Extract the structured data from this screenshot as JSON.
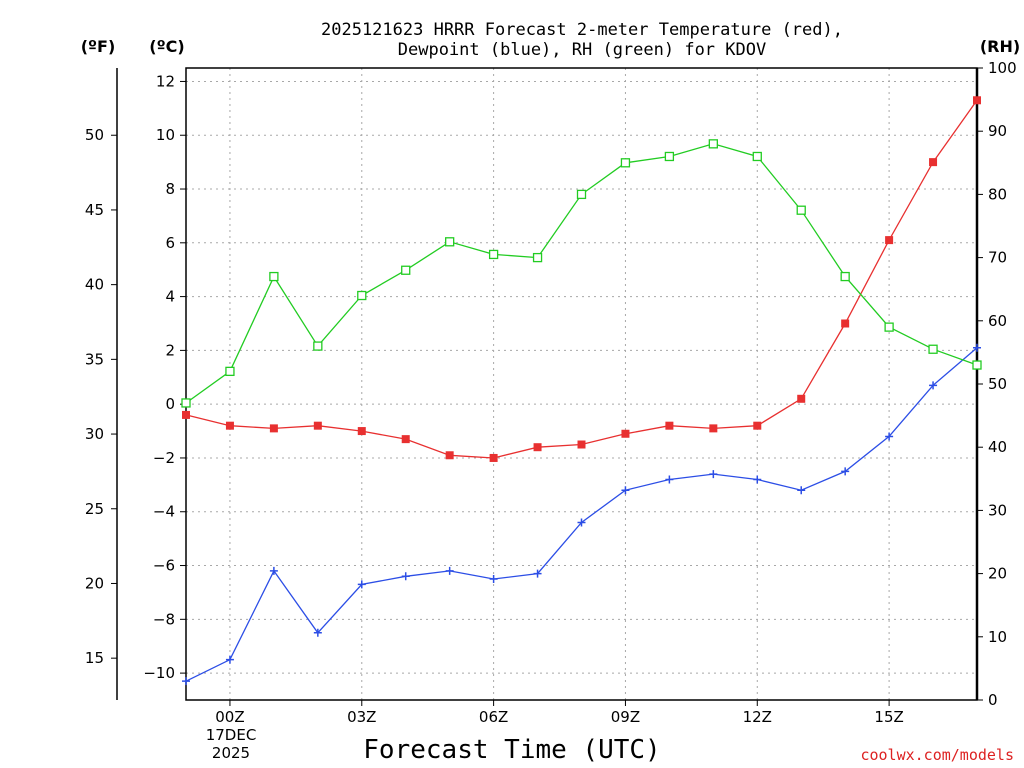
{
  "chart_data": {
    "type": "line",
    "title_line1": "2025121623 HRRR Forecast 2-meter Temperature (red),",
    "title_line2": "Dewpoint (blue), RH (green) for KDOV",
    "xlabel": "Forecast Time (UTC)",
    "credit": "coolwx.com/models",
    "date_label_day": "17DEC",
    "date_label_year": "2025",
    "units": {
      "fahrenheit": "(ºF)",
      "celsius": "(ºC)",
      "rh": "(RH)"
    },
    "x_hours": [
      -1,
      0,
      1,
      2,
      3,
      4,
      5,
      6,
      7,
      8,
      9,
      10,
      11,
      12,
      13,
      14,
      15,
      16,
      17
    ],
    "xlim": [
      -1,
      17
    ],
    "x_ticks": [
      {
        "hour": 0,
        "label": "00Z"
      },
      {
        "hour": 3,
        "label": "03Z"
      },
      {
        "hour": 6,
        "label": "06Z"
      },
      {
        "hour": 9,
        "label": "09Z"
      },
      {
        "hour": 12,
        "label": "12Z"
      },
      {
        "hour": 15,
        "label": "15Z"
      }
    ],
    "celsius_axis": {
      "min": -11,
      "max": 12.5,
      "ticks": [
        12,
        10,
        8,
        6,
        4,
        2,
        0,
        -2,
        -4,
        -6,
        -8,
        -10
      ]
    },
    "fahrenheit_axis": {
      "ticks": [
        50,
        45,
        40,
        35,
        30,
        25,
        20,
        15
      ]
    },
    "rh_axis": {
      "min": 0,
      "max": 100,
      "ticks": [
        100,
        90,
        80,
        70,
        60,
        50,
        40,
        30,
        20,
        10,
        0
      ]
    },
    "series": [
      {
        "name": "Temperature",
        "units": "C",
        "color": "#e83030",
        "marker": "filled-square",
        "values": [
          -0.4,
          -0.8,
          -0.9,
          -0.8,
          -1.0,
          -1.3,
          -1.9,
          -2.0,
          -1.6,
          -1.5,
          -1.1,
          -0.8,
          -0.9,
          -0.8,
          0.2,
          3.0,
          6.1,
          9.0,
          11.3
        ]
      },
      {
        "name": "Dewpoint",
        "units": "C",
        "color": "#2c4ee6",
        "marker": "plus",
        "values": [
          -10.3,
          -9.5,
          -6.2,
          -8.5,
          -6.7,
          -6.4,
          -6.2,
          -6.5,
          -6.3,
          -4.4,
          -3.2,
          -2.8,
          -2.6,
          -2.8,
          -3.2,
          -2.5,
          -1.2,
          0.7,
          2.1
        ]
      },
      {
        "name": "Relative Humidity",
        "units": "%",
        "color": "#22cc22",
        "marker": "open-square",
        "values": [
          47,
          52,
          67,
          56,
          64,
          68,
          72.5,
          70.5,
          70,
          80,
          85,
          86,
          88,
          86,
          77.5,
          67,
          59,
          55.5,
          53
        ]
      }
    ]
  }
}
